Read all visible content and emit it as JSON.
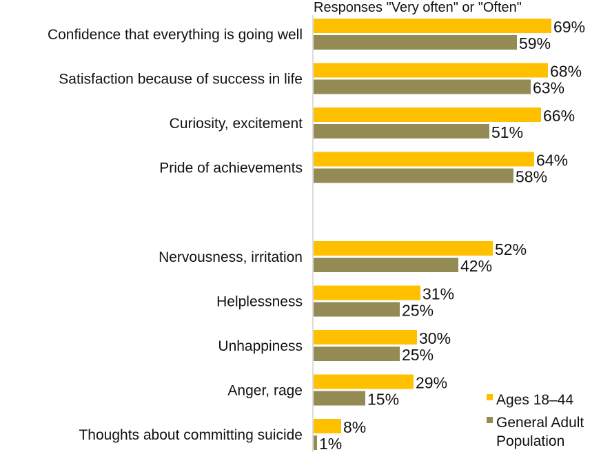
{
  "chart_data": {
    "type": "bar",
    "orientation": "horizontal",
    "subtitle": "Responses \"Very often\" or \"Often\"",
    "value_format": "percent",
    "categories": [
      "Confidence that everything is going well",
      "Satisfaction because of success in life",
      "Curiosity, excitement",
      "Pride of achievements",
      "Nervousness, irritation",
      "Helplessness",
      "Unhappiness",
      "Anger, rage",
      "Thoughts about committing suicide"
    ],
    "groups": [
      [
        0,
        1,
        2,
        3
      ],
      [
        4,
        5,
        6,
        7,
        8
      ]
    ],
    "series": [
      {
        "name": "Ages 18–44",
        "color": "#FFC000",
        "values": [
          69,
          68,
          66,
          64,
          52,
          31,
          30,
          29,
          8
        ]
      },
      {
        "name": "General Adult Population",
        "color": "#948A54",
        "values": [
          59,
          63,
          51,
          58,
          42,
          25,
          25,
          15,
          1
        ]
      }
    ],
    "legend": {
      "position": "bottom-right",
      "entries": [
        {
          "lines": [
            "Ages 18–44"
          ],
          "color": "#FFC000"
        },
        {
          "lines": [
            "General Adult",
            "Population"
          ],
          "color": "#948A54"
        }
      ]
    },
    "xlim": [
      0,
      100
    ],
    "grid": false
  }
}
